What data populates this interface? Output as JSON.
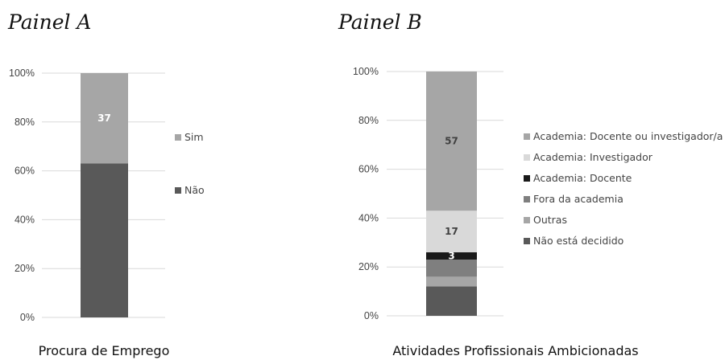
{
  "chart_data": [
    {
      "type": "bar",
      "stacked": true,
      "percent_axis": true,
      "title": "Painel A",
      "categories": [
        "Procura de Emprego"
      ],
      "ylim": [
        0,
        100
      ],
      "yticks": [
        "0%",
        "20%",
        "40%",
        "60%",
        "80%",
        "100%"
      ],
      "grid": true,
      "legend_position": "right",
      "series": [
        {
          "name": "Não",
          "values": [
            63
          ],
          "color": "#595959",
          "label": ""
        },
        {
          "name": "Sim",
          "values": [
            37
          ],
          "color": "#a6a6a6",
          "label": "37"
        }
      ],
      "legend_order": [
        "Sim",
        "Não"
      ]
    },
    {
      "type": "bar",
      "stacked": true,
      "percent_axis": true,
      "title": "Painel B",
      "categories": [
        "Atividades Profissionais Ambicionadas"
      ],
      "ylim": [
        0,
        100
      ],
      "yticks": [
        "0%",
        "20%",
        "40%",
        "60%",
        "80%",
        "100%"
      ],
      "grid": true,
      "legend_position": "right",
      "series": [
        {
          "name": "Não está decidido",
          "values": [
            12
          ],
          "color": "#595959",
          "label": ""
        },
        {
          "name": "Outras",
          "values": [
            4
          ],
          "color": "#a6a6a6",
          "label": ""
        },
        {
          "name": "Fora da academia",
          "values": [
            7
          ],
          "color": "#7f7f7f",
          "label": ""
        },
        {
          "name": "Academia: Docente",
          "values": [
            3
          ],
          "color": "#1a1a1a",
          "label": "3"
        },
        {
          "name": "Academia: Investigador",
          "values": [
            17
          ],
          "color": "#d9d9d9",
          "label": "17"
        },
        {
          "name": "Academia: Docente ou investigador/a",
          "values": [
            57
          ],
          "color": "#a6a6a6",
          "label": "57"
        }
      ],
      "legend_order": [
        "Academia: Docente ou investigador/a",
        "Academia: Investigador",
        "Academia: Docente",
        "Fora da academia",
        "Outras",
        "Não está decidido"
      ]
    }
  ]
}
